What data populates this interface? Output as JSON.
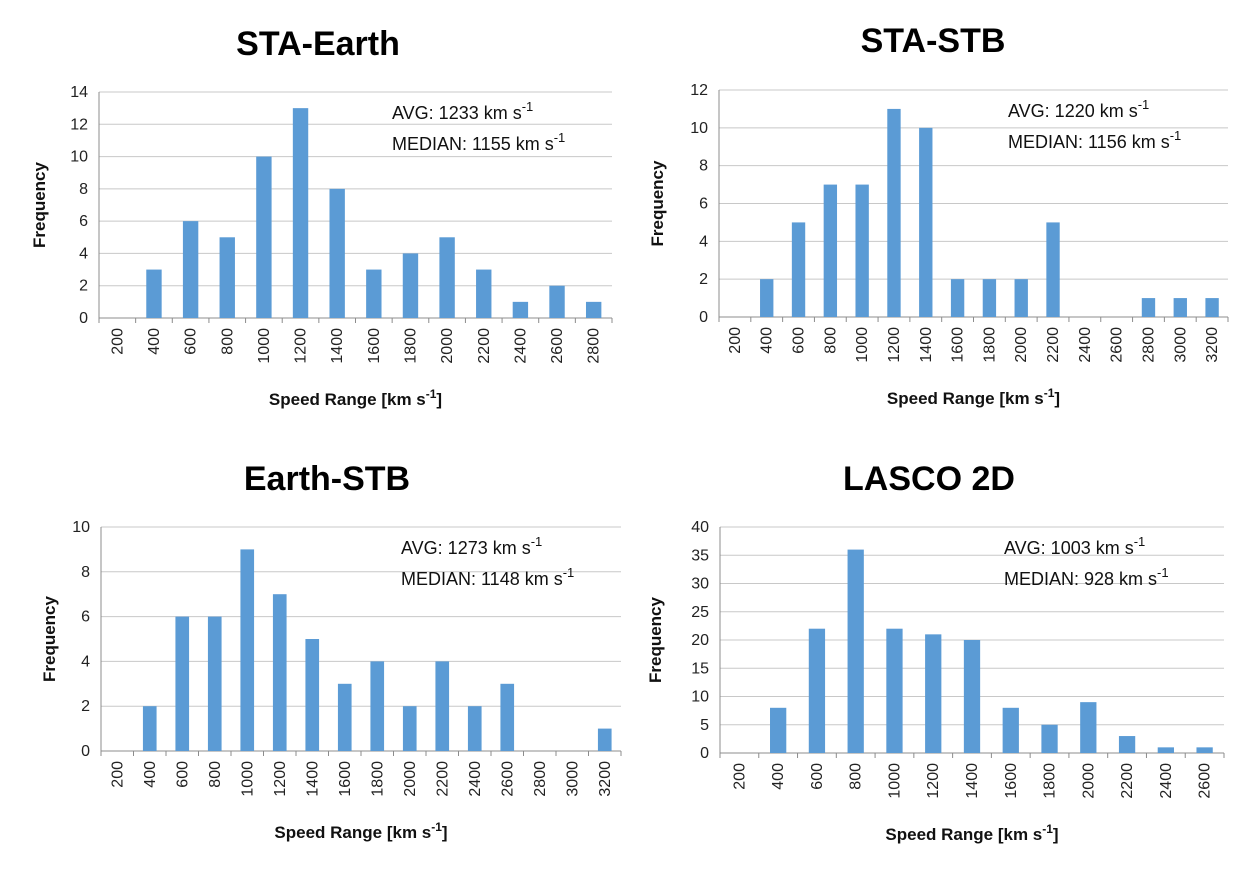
{
  "chart_data": [
    {
      "type": "bar",
      "title": "STA-Earth",
      "xlabel": "Speed Range [km s-1]",
      "ylabel": "Frequency",
      "categories": [
        "200",
        "400",
        "600",
        "800",
        "1000",
        "1200",
        "1400",
        "1600",
        "1800",
        "2000",
        "2200",
        "2400",
        "2600",
        "2800"
      ],
      "values": [
        0,
        3,
        6,
        5,
        10,
        13,
        8,
        3,
        4,
        5,
        3,
        1,
        2,
        1
      ],
      "ylim": [
        0,
        14
      ],
      "ytick_step": 2,
      "annotations": {
        "avg_text": "AVG: 1233 km s",
        "median_text": "MEDIAN: 1155 km s",
        "unit_exponent": "-1"
      },
      "color": "#5b9bd5"
    },
    {
      "type": "bar",
      "title": "STA-STB",
      "xlabel": "Speed Range [km s-1]",
      "ylabel": "Frequency",
      "categories": [
        "200",
        "400",
        "600",
        "800",
        "1000",
        "1200",
        "1400",
        "1600",
        "1800",
        "2000",
        "2200",
        "2400",
        "2600",
        "2800",
        "3000",
        "3200"
      ],
      "values": [
        0,
        2,
        5,
        7,
        7,
        11,
        10,
        2,
        2,
        2,
        5,
        0,
        0,
        1,
        1,
        1
      ],
      "ylim": [
        0,
        12
      ],
      "ytick_step": 2,
      "annotations": {
        "avg_text": "AVG: 1220 km s",
        "median_text": "MEDIAN: 1156 km s",
        "unit_exponent": "-1"
      },
      "color": "#5b9bd5"
    },
    {
      "type": "bar",
      "title": "Earth-STB",
      "xlabel": "Speed Range [km s-1]",
      "ylabel": "Frequency",
      "categories": [
        "200",
        "400",
        "600",
        "800",
        "1000",
        "1200",
        "1400",
        "1600",
        "1800",
        "2000",
        "2200",
        "2400",
        "2600",
        "2800",
        "3000",
        "3200"
      ],
      "values": [
        0,
        2,
        6,
        6,
        9,
        7,
        5,
        3,
        4,
        2,
        4,
        2,
        3,
        0,
        0,
        1
      ],
      "ylim": [
        0,
        10
      ],
      "ytick_step": 2,
      "annotations": {
        "avg_text": "AVG: 1273 km s",
        "median_text": "MEDIAN: 1148 km s",
        "unit_exponent": "-1"
      },
      "color": "#5b9bd5"
    },
    {
      "type": "bar",
      "title": "LASCO 2D",
      "xlabel": "Speed Range [km s-1]",
      "ylabel": "Frequency",
      "categories": [
        "200",
        "400",
        "600",
        "800",
        "1000",
        "1200",
        "1400",
        "1600",
        "1800",
        "2000",
        "2200",
        "2400",
        "2600"
      ],
      "values": [
        0,
        8,
        22,
        36,
        22,
        21,
        20,
        8,
        5,
        9,
        3,
        1,
        1
      ],
      "ylim": [
        0,
        40
      ],
      "ytick_step": 5,
      "annotations": {
        "avg_text": "AVG: 1003 km s",
        "median_text": "MEDIAN: 928 km s",
        "unit_exponent": "-1"
      },
      "color": "#5b9bd5"
    }
  ]
}
